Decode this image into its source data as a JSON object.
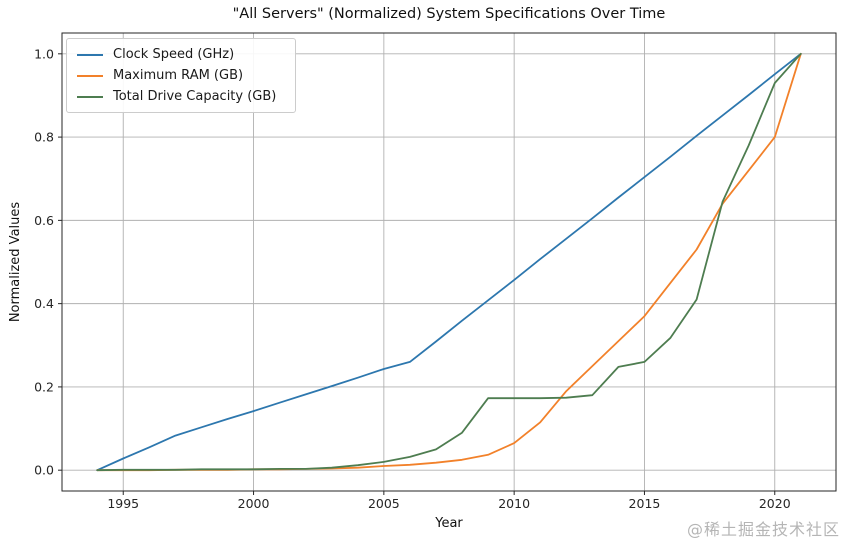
{
  "figure": {
    "title": "\"All Servers\" (Normalized) System Specifications Over Time",
    "watermark": "@稀土掘金技术社区"
  },
  "chart_data": {
    "type": "line",
    "title": "\"All Servers\" (Normalized) System Specifications Over Time",
    "xlabel": "Year",
    "ylabel": "Normalized Values",
    "xlim": [
      1992.65,
      2022.35
    ],
    "ylim": [
      -0.05,
      1.05
    ],
    "x_tick_values": [
      1995,
      2000,
      2005,
      2010,
      2015,
      2020
    ],
    "x_tick_labels": [
      "1995",
      "2000",
      "2005",
      "2010",
      "2015",
      "2020"
    ],
    "y_tick_values": [
      0.0,
      0.2,
      0.4,
      0.6,
      0.8,
      1.0
    ],
    "y_tick_labels": [
      "0.0",
      "0.2",
      "0.4",
      "0.6",
      "0.8",
      "1.0"
    ],
    "grid": true,
    "grid_color": "#b0b0b0",
    "spine_color": "#262626",
    "legend_position": "upper left",
    "x": [
      1994,
      1995,
      1996,
      1997,
      1998,
      1999,
      2000,
      2001,
      2002,
      2003,
      2004,
      2005,
      2006,
      2007,
      2008,
      2009,
      2010,
      2011,
      2012,
      2013,
      2014,
      2015,
      2016,
      2017,
      2018,
      2019,
      2020,
      2021
    ],
    "series": [
      {
        "name": "Clock Speed (GHz)",
        "color": "#2d77ae",
        "values": [
          0.0,
          0.028,
          0.055,
          0.083,
          0.103,
          0.123,
          0.142,
          0.162,
          0.182,
          0.202,
          0.222,
          0.243,
          0.26,
          0.309,
          0.359,
          0.408,
          0.457,
          0.507,
          0.556,
          0.605,
          0.655,
          0.704,
          0.753,
          0.803,
          0.852,
          0.901,
          0.951,
          1.0
        ]
      },
      {
        "name": "Maximum RAM (GB)",
        "color": "#f2812a",
        "values": [
          0.0,
          0.0,
          0.0,
          0.001,
          0.001,
          0.001,
          0.002,
          0.002,
          0.003,
          0.004,
          0.006,
          0.01,
          0.013,
          0.018,
          0.025,
          0.037,
          0.065,
          0.115,
          0.19,
          0.25,
          0.31,
          0.37,
          0.45,
          0.53,
          0.64,
          0.72,
          0.8,
          1.0
        ]
      },
      {
        "name": "Total Drive Capacity (GB)",
        "color": "#4e7d50",
        "values": [
          0.0,
          0.001,
          0.001,
          0.001,
          0.002,
          0.002,
          0.002,
          0.003,
          0.003,
          0.006,
          0.012,
          0.02,
          0.032,
          0.05,
          0.09,
          0.173,
          0.173,
          0.173,
          0.174,
          0.18,
          0.248,
          0.26,
          0.318,
          0.41,
          0.645,
          0.78,
          0.93,
          1.0
        ]
      }
    ]
  }
}
